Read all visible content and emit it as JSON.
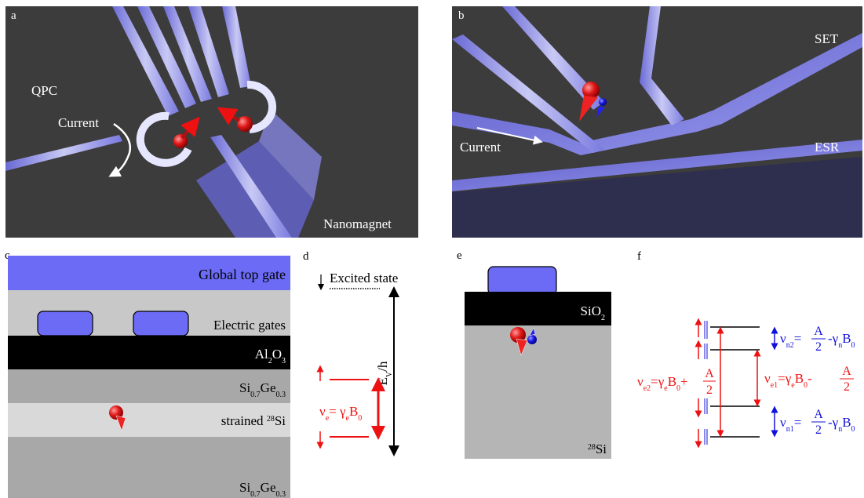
{
  "panels": {
    "a": {
      "letter": "a",
      "qpc": "QPC",
      "current": "Current",
      "nanomagnet": "Nanomagnet"
    },
    "b": {
      "letter": "b",
      "set": "SET",
      "current": "Current",
      "esr": "ESR"
    },
    "c": {
      "letter": "c",
      "global_top_gate": "Global top gate",
      "electric_gates": "Electric gates",
      "al2o3": {
        "base": "Al",
        "sub1": "2",
        "mid": "O",
        "sub2": "3"
      },
      "sige_top": {
        "a": "Si",
        "s1": "0.7",
        "b": "Ge",
        "s2": "0.3"
      },
      "strained": {
        "pre": "strained ",
        "sup": "28",
        "post": "Si"
      },
      "sige_bottom": {
        "a": "Si",
        "s1": "0.7",
        "b": "Ge",
        "s2": "0.3"
      }
    },
    "d": {
      "letter": "d",
      "excited_state": "Excited state",
      "ev_main": "E",
      "ev_sub": "V",
      "ev_tail": "/h",
      "nu_e": {
        "nu": "ν",
        "sub": "e",
        "eq": "= γ",
        "g_sub": "e",
        "b": "B",
        "b_sub": "0"
      }
    },
    "e": {
      "letter": "e",
      "sio2": {
        "base": "SiO",
        "sub": "2"
      },
      "si28": {
        "sup": "28",
        "base": "Si"
      }
    },
    "f": {
      "letter": "f",
      "nu_n2": {
        "nu": "ν",
        "sub": "n2",
        "eq": "=",
        "num": "A",
        "den": "2",
        "rest": "-γ",
        "g_sub": "n",
        "b": "B",
        "b_sub": "0"
      },
      "nu_n1": {
        "nu": "ν",
        "sub": "n1",
        "eq": "=",
        "num": "A",
        "den": "2",
        "rest": "-γ",
        "g_sub": "n",
        "b": "B",
        "b_sub": "0"
      },
      "nu_e1": {
        "nu": "ν",
        "sub": "e1",
        "eq": "=γ",
        "g_sub": "e",
        "b": "B",
        "b_sub": "0",
        "op": "- ",
        "num": "A",
        "den": "2"
      },
      "nu_e2": {
        "nu": "ν",
        "sub": "e2",
        "eq": "=γ",
        "g_sub": "e",
        "b": "B",
        "b_sub": "0",
        "op": "+",
        "num": "A",
        "den": "2"
      }
    }
  },
  "colors": {
    "gate_blue": "#6b6bf5",
    "dark_bg": "#3c3c3c",
    "red": "#ee1111",
    "blue": "#1111dd",
    "black": "#000000",
    "light_grey": "#c8c8c8",
    "mid_grey": "#a8a8a8",
    "lighter_grey": "#d9d9d9",
    "grey_layer": "#b5b5b5"
  }
}
